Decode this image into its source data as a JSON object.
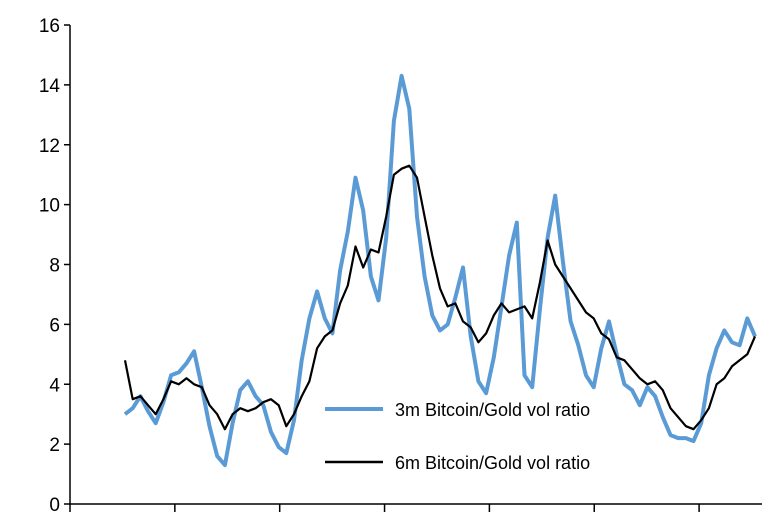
{
  "chart_data": {
    "type": "line",
    "title": "",
    "xlabel": "",
    "ylabel": "",
    "ylim": [
      0,
      16
    ],
    "yticks": [
      0,
      2,
      4,
      6,
      8,
      10,
      12,
      14,
      16
    ],
    "xtick_count": 7,
    "grid": false,
    "legend_position": "bottom-center",
    "series": [
      {
        "name": "3m Bitcoin/Gold vol ratio",
        "color": "#5b9bd5",
        "values": [
          3.0,
          3.2,
          3.6,
          3.1,
          2.7,
          3.4,
          4.3,
          4.4,
          4.7,
          5.1,
          3.9,
          2.6,
          1.6,
          1.3,
          2.7,
          3.8,
          4.1,
          3.6,
          3.3,
          2.4,
          1.9,
          1.7,
          2.8,
          4.8,
          6.2,
          7.1,
          6.2,
          5.7,
          7.8,
          9.1,
          10.9,
          9.8,
          7.6,
          6.8,
          8.9,
          12.8,
          14.3,
          13.2,
          9.6,
          7.6,
          6.3,
          5.8,
          6.0,
          6.9,
          7.9,
          5.6,
          4.1,
          3.7,
          4.9,
          6.6,
          8.3,
          9.4,
          4.3,
          3.9,
          6.5,
          8.9,
          10.3,
          8.1,
          6.1,
          5.3,
          4.3,
          3.9,
          5.2,
          6.1,
          5.0,
          4.0,
          3.8,
          3.3,
          3.9,
          3.6,
          2.9,
          2.3,
          2.2,
          2.2,
          2.1,
          2.7,
          4.3,
          5.2,
          5.8,
          5.4,
          5.3,
          6.2,
          5.6
        ]
      },
      {
        "name": "6m Bitcoin/Gold vol ratio",
        "color": "#000000",
        "values": [
          4.8,
          3.5,
          3.6,
          3.3,
          3.0,
          3.5,
          4.1,
          4.0,
          4.2,
          4.0,
          3.9,
          3.3,
          3.0,
          2.5,
          3.0,
          3.2,
          3.1,
          3.2,
          3.4,
          3.5,
          3.3,
          2.6,
          3.0,
          3.6,
          4.1,
          5.2,
          5.6,
          5.8,
          6.7,
          7.3,
          8.6,
          7.9,
          8.5,
          8.4,
          9.6,
          11.0,
          11.2,
          11.3,
          10.9,
          9.6,
          8.3,
          7.2,
          6.6,
          6.7,
          6.1,
          5.9,
          5.4,
          5.7,
          6.3,
          6.7,
          6.4,
          6.5,
          6.6,
          6.2,
          7.4,
          8.8,
          8.0,
          7.6,
          7.2,
          6.8,
          6.4,
          6.2,
          5.7,
          5.5,
          4.9,
          4.8,
          4.5,
          4.2,
          4.0,
          4.1,
          3.8,
          3.2,
          2.9,
          2.6,
          2.5,
          2.8,
          3.2,
          4.0,
          4.2,
          4.6,
          4.8,
          5.0,
          5.6
        ]
      }
    ]
  }
}
